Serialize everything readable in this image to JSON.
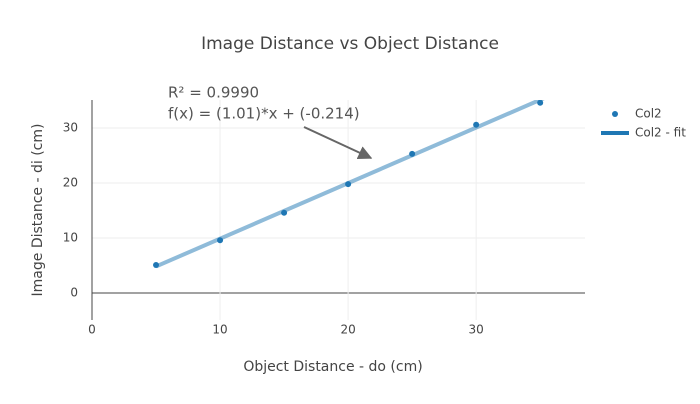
{
  "chart_data": {
    "type": "scatter",
    "title": "Image Distance vs Object Distance",
    "x_label": "Object Distance - do (cm)",
    "y_label": "Image Distance - di (cm)",
    "series": [
      {
        "name": "Col2",
        "color": "#1f77b4",
        "mode": "markers",
        "x": [
          5,
          10,
          15,
          20,
          25,
          30,
          35
        ],
        "values": [
          5.1,
          9.6,
          14.6,
          19.8,
          25.3,
          30.6,
          34.6
        ]
      },
      {
        "name": "Col2 - fit",
        "color": "#1f77b4",
        "mode": "line",
        "opacity": 0.5,
        "x": [
          5,
          35.5
        ],
        "values": [
          4.836,
          35.64
        ]
      }
    ],
    "annotation": [
      "R² = 0.9990",
      "f(x) = (1.01)*x + (-0.214)"
    ],
    "xlim": [
      0,
      38.5
    ],
    "ylim": [
      -4.9,
      35.1
    ],
    "xticks": [
      0,
      10,
      20,
      30
    ],
    "yticks": [
      0,
      10,
      20,
      30
    ],
    "grid": true,
    "legend": "top-right"
  }
}
